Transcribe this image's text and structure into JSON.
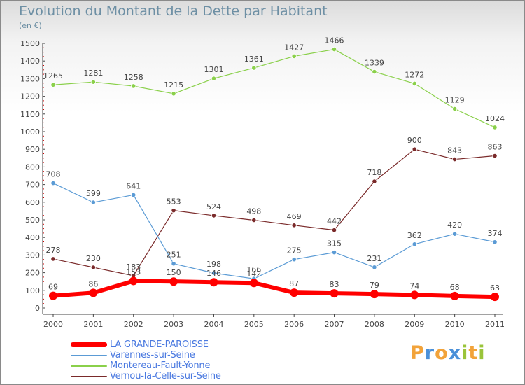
{
  "title": "Evolution du Montant de la Dette par Habitant",
  "unit": "(en €)",
  "logo": [
    "P",
    "r",
    "o",
    "x",
    "i",
    "t",
    "i"
  ],
  "logo_colors": [
    "#f2a33a",
    "#4a90d9",
    "#f2a33a",
    "#4a90d9",
    "#9ac43a",
    "#f2a33a",
    "#9ac43a"
  ],
  "chart_data": {
    "type": "line",
    "title": "Evolution du Montant de la Dette par Habitant",
    "ylabel": "(en €)",
    "x": [
      "2000",
      "2001",
      "2002",
      "2003",
      "2004",
      "2005",
      "2006",
      "2007",
      "2008",
      "2009",
      "2010",
      "2011"
    ],
    "ylim": [
      0,
      1500
    ],
    "yticks": [
      "0",
      "100",
      "200",
      "300",
      "400",
      "500",
      "600",
      "700",
      "800",
      "900",
      "1000",
      "1100",
      "1200",
      "1300",
      "1400",
      "1500"
    ],
    "grid": false,
    "legend": "bottom-left",
    "series": [
      {
        "name": "LA GRANDE-PAROISSE",
        "color": "#ff0000",
        "values": [
          69,
          86,
          153,
          150,
          146,
          142,
          87,
          83,
          79,
          74,
          68,
          63
        ],
        "labels": [
          "69",
          "86",
          "153",
          "150",
          "146",
          "142",
          "87",
          "83",
          "79",
          "74",
          "68",
          "63"
        ]
      },
      {
        "name": "Varennes-sur-Seine",
        "color": "#5b9bd5",
        "values": [
          708,
          599,
          641,
          251,
          198,
          166,
          275,
          315,
          231,
          362,
          420,
          374
        ],
        "labels": [
          "708",
          "599",
          "641",
          "251",
          "198",
          "166",
          "275",
          "315",
          "231",
          "362",
          "420",
          "374"
        ]
      },
      {
        "name": "Montereau-Fault-Yonne",
        "color": "#8ad04a",
        "values": [
          1265,
          1281,
          1258,
          1215,
          1301,
          1361,
          1427,
          1466,
          1339,
          1272,
          1129,
          1024
        ],
        "labels": [
          "1265",
          "1281",
          "1258",
          "1215",
          "1301",
          "1361",
          "1427",
          "1466",
          "1339",
          "1272",
          "1129",
          "1024"
        ]
      },
      {
        "name": "Vernou-la-Celle-sur-Seine",
        "color": "#7a2a2a",
        "values": [
          278,
          230,
          183,
          553,
          524,
          498,
          469,
          442,
          718,
          900,
          843,
          863
        ],
        "labels": [
          "278",
          "230",
          "183",
          "553",
          "524",
          "498",
          "469",
          "442",
          "718",
          "900",
          "843",
          "863"
        ]
      }
    ]
  }
}
